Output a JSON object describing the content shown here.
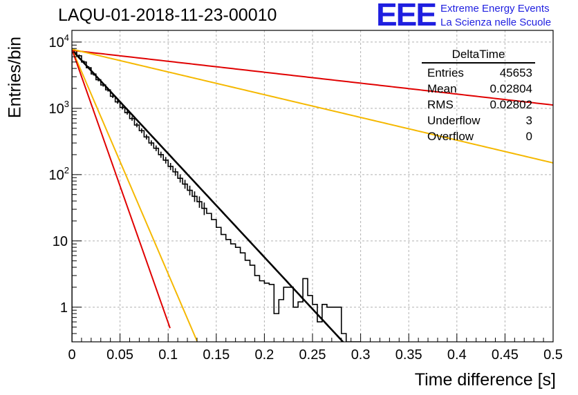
{
  "header": {
    "title": "LAQU-01-2018-11-23-00010",
    "logo_letters": "EEE",
    "logo_line1": "Extreme Energy Events",
    "logo_line2": "La Scienza nelle Scuole"
  },
  "stats": {
    "title": "DeltaTime",
    "rows": [
      {
        "label": "Entries",
        "value": "45653"
      },
      {
        "label": "Mean",
        "value": "0.02804"
      },
      {
        "label": "RMS",
        "value": "0.02802"
      },
      {
        "label": "Underflow",
        "value": "3"
      },
      {
        "label": "Overflow",
        "value": "0"
      }
    ]
  },
  "chart_data": {
    "type": "histogram",
    "yscale": "log",
    "xlabel": "Time difference [s]",
    "ylabel": "Entries/bin",
    "xlim": [
      0,
      0.5
    ],
    "ylim": [
      0.3,
      15000
    ],
    "grid": true,
    "x_ticks": [
      "0",
      "0.05",
      "0.1",
      "0.15",
      "0.2",
      "0.25",
      "0.3",
      "0.35",
      "0.4",
      "0.45",
      "0.5"
    ],
    "y_ticks": [
      {
        "value": 1,
        "label": "1",
        "sup": ""
      },
      {
        "value": 10,
        "label": "10",
        "sup": ""
      },
      {
        "value": 100,
        "label": "10",
        "sup": "2"
      },
      {
        "value": 1000,
        "label": "10",
        "sup": "3"
      },
      {
        "value": 10000,
        "label": "10",
        "sup": "4"
      }
    ],
    "bin_width": 0.005,
    "bin_centers": [
      0.0025,
      0.0075,
      0.0125,
      0.0175,
      0.0225,
      0.0275,
      0.0325,
      0.0375,
      0.0425,
      0.0475,
      0.0525,
      0.0575,
      0.0625,
      0.0675,
      0.0725,
      0.0775,
      0.0825,
      0.0875,
      0.0925,
      0.0975,
      0.1025,
      0.1075,
      0.1125,
      0.1175,
      0.1225,
      0.1275,
      0.1325,
      0.1375,
      0.1425,
      0.1475,
      0.1525,
      0.1575,
      0.1625,
      0.1675,
      0.1725,
      0.1775,
      0.1825,
      0.1875,
      0.1925,
      0.1975,
      0.2025,
      0.2075,
      0.2125,
      0.2175,
      0.2225,
      0.2275,
      0.2325,
      0.2375,
      0.2425,
      0.2475,
      0.2525,
      0.2575,
      0.2625,
      0.2675,
      0.2725,
      0.2775,
      0.2825,
      0.2875,
      0.2925,
      0.2975
    ],
    "counts": [
      7500,
      6200,
      5000,
      4100,
      3300,
      2700,
      2250,
      1900,
      1520,
      1250,
      1030,
      860,
      700,
      560,
      460,
      370,
      300,
      250,
      200,
      165,
      133,
      110,
      88,
      72,
      58,
      47,
      39,
      31,
      26,
      21,
      16,
      12.5,
      10.5,
      9,
      8,
      6.6,
      5.1,
      4.3,
      3,
      2.5,
      2.3,
      2.2,
      0.8,
      1.3,
      2,
      2,
      1.0,
      1.2,
      2.7,
      1.5,
      1.1,
      0.6,
      1.1,
      1.0,
      1.0,
      1.0,
      0.4,
      0.2,
      0.3,
      0.3
    ],
    "series": [
      {
        "name": "histogram-fit",
        "color": "#000000",
        "y_at_0": 7600,
        "slope_per_s": 36.0,
        "x_end": 0.285
      },
      {
        "name": "yellow-steep",
        "color": "#f5b800",
        "y_at_0": 7800,
        "slope_per_s": 78.0,
        "x_end": 0.13
      },
      {
        "name": "red-steep",
        "color": "#e00000",
        "y_at_0": 7800,
        "slope_per_s": 95.0,
        "x_end": 0.102
      },
      {
        "name": "red-shallow",
        "color": "#e00000",
        "y_at_0": 7500,
        "slope_per_s": 3.8,
        "x_end": 0.5
      },
      {
        "name": "yellow-shallow",
        "color": "#f5b800",
        "y_at_0": 7800,
        "slope_per_s": 7.9,
        "x_end": 0.5
      }
    ],
    "colors": {
      "axis": "#000000",
      "grid": "#b0b0b0"
    }
  }
}
